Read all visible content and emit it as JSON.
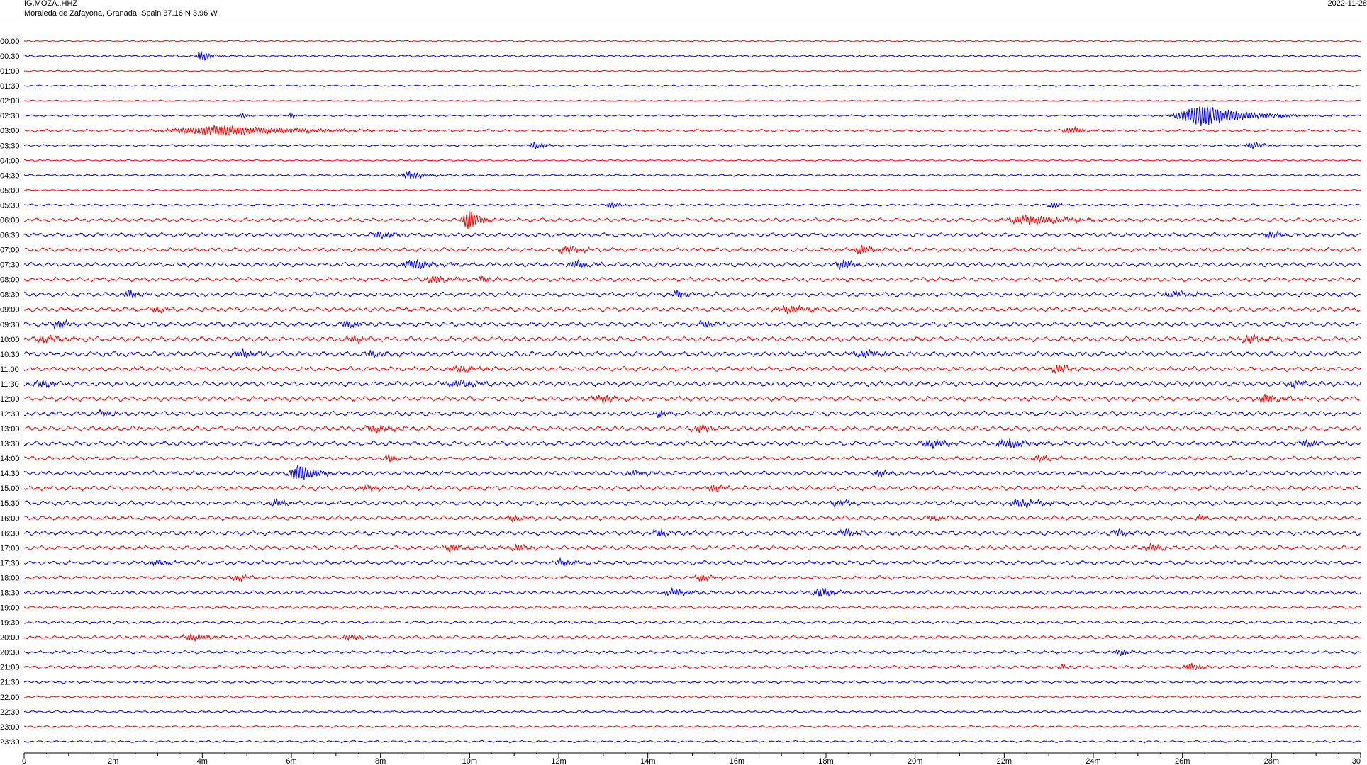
{
  "header": {
    "station": "IG.MOZA..HHZ",
    "location": "Moraleda de Zafayona, Granada, Spain  37.16 N 3.96 W",
    "date": "2022-11-28"
  },
  "chart_data": {
    "type": "line",
    "title": "IG.MOZA..HHZ",
    "subtitle": "Moraleda de Zafayona, Granada, Spain  37.16 N 3.96 W",
    "date": "2022-11-28",
    "xlabel": "",
    "ylabel": "",
    "xlim": [
      0,
      30
    ],
    "x_unit": "minutes",
    "x_ticks": [
      "0",
      "2m",
      "4m",
      "6m",
      "8m",
      "10m",
      "12m",
      "14m",
      "16m",
      "18m",
      "20m",
      "22m",
      "24m",
      "26m",
      "28m",
      "30"
    ],
    "trace_colors": [
      "#ff0000",
      "#0000ff"
    ],
    "rows": [
      {
        "label": "00:00",
        "noise": 0.22,
        "events": []
      },
      {
        "label": "00:30",
        "noise": 0.3,
        "events": [
          {
            "t": 4.0,
            "a": 3.5,
            "w": 0.18
          }
        ]
      },
      {
        "label": "01:00",
        "noise": 0.2,
        "events": []
      },
      {
        "label": "01:30",
        "noise": 0.22,
        "events": []
      },
      {
        "label": "02:00",
        "noise": 0.2,
        "events": []
      },
      {
        "label": "02:30",
        "noise": 0.28,
        "events": [
          {
            "t": 4.9,
            "a": 1.8,
            "w": 0.12
          },
          {
            "t": 6.0,
            "a": 1.6,
            "w": 0.12
          },
          {
            "t": 26.5,
            "a": 6.5,
            "w": 0.9
          }
        ]
      },
      {
        "label": "03:00",
        "noise": 0.35,
        "events": [
          {
            "t": 4.5,
            "a": 3.0,
            "w": 1.8
          },
          {
            "t": 23.5,
            "a": 2.0,
            "w": 0.3
          }
        ]
      },
      {
        "label": "03:30",
        "noise": 0.3,
        "events": [
          {
            "t": 11.5,
            "a": 2.2,
            "w": 0.25
          },
          {
            "t": 27.6,
            "a": 2.0,
            "w": 0.25
          }
        ]
      },
      {
        "label": "04:00",
        "noise": 0.22,
        "events": []
      },
      {
        "label": "04:30",
        "noise": 0.3,
        "events": [
          {
            "t": 8.7,
            "a": 2.0,
            "w": 0.4
          }
        ]
      },
      {
        "label": "05:00",
        "noise": 0.22,
        "events": []
      },
      {
        "label": "05:30",
        "noise": 0.32,
        "events": [
          {
            "t": 13.2,
            "a": 1.8,
            "w": 0.2
          },
          {
            "t": 23.1,
            "a": 1.6,
            "w": 0.2
          }
        ]
      },
      {
        "label": "06:00",
        "noise": 0.55,
        "events": [
          {
            "t": 10.0,
            "a": 6.0,
            "w": 0.25
          },
          {
            "t": 22.6,
            "a": 2.5,
            "w": 0.9
          }
        ]
      },
      {
        "label": "06:30",
        "noise": 0.6,
        "events": [
          {
            "t": 8.0,
            "a": 2.0,
            "w": 0.3
          },
          {
            "t": 28.0,
            "a": 2.0,
            "w": 0.3
          }
        ]
      },
      {
        "label": "07:00",
        "noise": 0.6,
        "events": [
          {
            "t": 12.2,
            "a": 2.2,
            "w": 0.4
          },
          {
            "t": 18.8,
            "a": 2.5,
            "w": 0.3
          }
        ]
      },
      {
        "label": "07:30",
        "noise": 0.65,
        "events": [
          {
            "t": 8.8,
            "a": 2.5,
            "w": 0.5
          },
          {
            "t": 12.4,
            "a": 2.4,
            "w": 0.3
          },
          {
            "t": 18.4,
            "a": 2.5,
            "w": 0.3
          }
        ]
      },
      {
        "label": "08:00",
        "noise": 0.65,
        "events": [
          {
            "t": 9.2,
            "a": 2.0,
            "w": 0.4
          },
          {
            "t": 10.3,
            "a": 1.6,
            "w": 0.2
          }
        ]
      },
      {
        "label": "08:30",
        "noise": 0.7,
        "events": [
          {
            "t": 2.4,
            "a": 2.0,
            "w": 0.3
          },
          {
            "t": 14.7,
            "a": 2.2,
            "w": 0.3
          },
          {
            "t": 25.8,
            "a": 2.0,
            "w": 0.4
          }
        ]
      },
      {
        "label": "09:00",
        "noise": 0.7,
        "events": [
          {
            "t": 3.0,
            "a": 1.6,
            "w": 0.3
          },
          {
            "t": 17.2,
            "a": 1.8,
            "w": 0.5
          }
        ]
      },
      {
        "label": "09:30",
        "noise": 0.7,
        "events": [
          {
            "t": 0.8,
            "a": 2.0,
            "w": 0.3
          },
          {
            "t": 7.3,
            "a": 2.0,
            "w": 0.3
          },
          {
            "t": 15.3,
            "a": 1.8,
            "w": 0.3
          }
        ]
      },
      {
        "label": "10:00",
        "noise": 0.75,
        "events": [
          {
            "t": 0.5,
            "a": 2.0,
            "w": 0.4
          },
          {
            "t": 7.4,
            "a": 1.8,
            "w": 0.3
          },
          {
            "t": 27.5,
            "a": 2.0,
            "w": 0.4
          }
        ]
      },
      {
        "label": "10:30",
        "noise": 0.75,
        "events": [
          {
            "t": 4.9,
            "a": 2.0,
            "w": 0.4
          },
          {
            "t": 7.8,
            "a": 1.8,
            "w": 0.3
          },
          {
            "t": 18.9,
            "a": 2.0,
            "w": 0.4
          }
        ]
      },
      {
        "label": "11:00",
        "noise": 0.7,
        "events": [
          {
            "t": 9.8,
            "a": 1.8,
            "w": 0.4
          },
          {
            "t": 23.2,
            "a": 2.2,
            "w": 0.3
          }
        ]
      },
      {
        "label": "11:30",
        "noise": 0.75,
        "events": [
          {
            "t": 0.4,
            "a": 2.0,
            "w": 0.3
          },
          {
            "t": 9.8,
            "a": 1.8,
            "w": 0.6
          },
          {
            "t": 28.5,
            "a": 1.8,
            "w": 0.3
          }
        ]
      },
      {
        "label": "12:00",
        "noise": 0.75,
        "events": [
          {
            "t": 13.0,
            "a": 2.0,
            "w": 0.4
          },
          {
            "t": 27.9,
            "a": 2.5,
            "w": 0.4
          }
        ]
      },
      {
        "label": "12:30",
        "noise": 0.75,
        "events": [
          {
            "t": 1.8,
            "a": 1.6,
            "w": 0.3
          },
          {
            "t": 14.3,
            "a": 1.6,
            "w": 0.3
          }
        ]
      },
      {
        "label": "13:00",
        "noise": 0.75,
        "events": [
          {
            "t": 7.9,
            "a": 2.0,
            "w": 0.5
          },
          {
            "t": 15.2,
            "a": 2.2,
            "w": 0.3
          }
        ]
      },
      {
        "label": "13:30",
        "noise": 0.7,
        "events": [
          {
            "t": 20.4,
            "a": 2.2,
            "w": 0.4
          },
          {
            "t": 22.1,
            "a": 2.6,
            "w": 0.5
          },
          {
            "t": 28.8,
            "a": 2.0,
            "w": 0.3
          }
        ]
      },
      {
        "label": "14:00",
        "noise": 0.6,
        "events": [
          {
            "t": 8.2,
            "a": 2.2,
            "w": 0.15
          },
          {
            "t": 22.8,
            "a": 1.6,
            "w": 0.3
          }
        ]
      },
      {
        "label": "14:30",
        "noise": 0.65,
        "events": [
          {
            "t": 6.2,
            "a": 5.0,
            "w": 0.35
          },
          {
            "t": 13.7,
            "a": 1.6,
            "w": 0.3
          },
          {
            "t": 19.2,
            "a": 1.8,
            "w": 0.3
          }
        ]
      },
      {
        "label": "15:00",
        "noise": 0.7,
        "events": [
          {
            "t": 7.7,
            "a": 1.6,
            "w": 0.3
          },
          {
            "t": 15.5,
            "a": 1.8,
            "w": 0.3
          }
        ]
      },
      {
        "label": "15:30",
        "noise": 0.7,
        "events": [
          {
            "t": 5.7,
            "a": 2.0,
            "w": 0.3
          },
          {
            "t": 18.3,
            "a": 1.8,
            "w": 0.3
          },
          {
            "t": 22.4,
            "a": 2.2,
            "w": 0.5
          }
        ]
      },
      {
        "label": "16:00",
        "noise": 0.65,
        "events": [
          {
            "t": 11.0,
            "a": 1.6,
            "w": 0.3
          },
          {
            "t": 20.4,
            "a": 1.6,
            "w": 0.3
          },
          {
            "t": 26.4,
            "a": 1.8,
            "w": 0.15
          }
        ]
      },
      {
        "label": "16:30",
        "noise": 0.7,
        "events": [
          {
            "t": 14.3,
            "a": 1.8,
            "w": 0.3
          },
          {
            "t": 18.5,
            "a": 2.0,
            "w": 0.3
          },
          {
            "t": 24.6,
            "a": 2.0,
            "w": 0.3
          }
        ]
      },
      {
        "label": "17:00",
        "noise": 0.65,
        "events": [
          {
            "t": 9.6,
            "a": 1.8,
            "w": 0.4
          },
          {
            "t": 11.1,
            "a": 2.0,
            "w": 0.3
          },
          {
            "t": 25.3,
            "a": 1.8,
            "w": 0.3
          }
        ]
      },
      {
        "label": "17:30",
        "noise": 0.6,
        "events": [
          {
            "t": 3.0,
            "a": 1.6,
            "w": 0.3
          },
          {
            "t": 12.1,
            "a": 1.8,
            "w": 0.3
          }
        ]
      },
      {
        "label": "18:00",
        "noise": 0.55,
        "events": [
          {
            "t": 4.8,
            "a": 1.8,
            "w": 0.3
          },
          {
            "t": 15.2,
            "a": 1.8,
            "w": 0.3
          }
        ]
      },
      {
        "label": "18:30",
        "noise": 0.55,
        "events": [
          {
            "t": 14.6,
            "a": 2.0,
            "w": 0.4
          },
          {
            "t": 17.9,
            "a": 2.5,
            "w": 0.3
          }
        ]
      },
      {
        "label": "19:00",
        "noise": 0.45,
        "events": []
      },
      {
        "label": "19:30",
        "noise": 0.45,
        "events": []
      },
      {
        "label": "20:00",
        "noise": 0.5,
        "events": [
          {
            "t": 3.8,
            "a": 2.0,
            "w": 0.4
          },
          {
            "t": 7.3,
            "a": 1.6,
            "w": 0.3
          }
        ]
      },
      {
        "label": "20:30",
        "noise": 0.45,
        "events": [
          {
            "t": 24.6,
            "a": 1.8,
            "w": 0.3
          }
        ]
      },
      {
        "label": "21:00",
        "noise": 0.45,
        "events": [
          {
            "t": 23.3,
            "a": 1.8,
            "w": 0.15
          },
          {
            "t": 26.2,
            "a": 2.0,
            "w": 0.3
          }
        ]
      },
      {
        "label": "21:30",
        "noise": 0.4,
        "events": []
      },
      {
        "label": "22:00",
        "noise": 0.35,
        "events": []
      },
      {
        "label": "22:30",
        "noise": 0.35,
        "events": []
      },
      {
        "label": "23:00",
        "noise": 0.3,
        "events": []
      },
      {
        "label": "23:30",
        "noise": 0.3,
        "events": []
      }
    ]
  }
}
